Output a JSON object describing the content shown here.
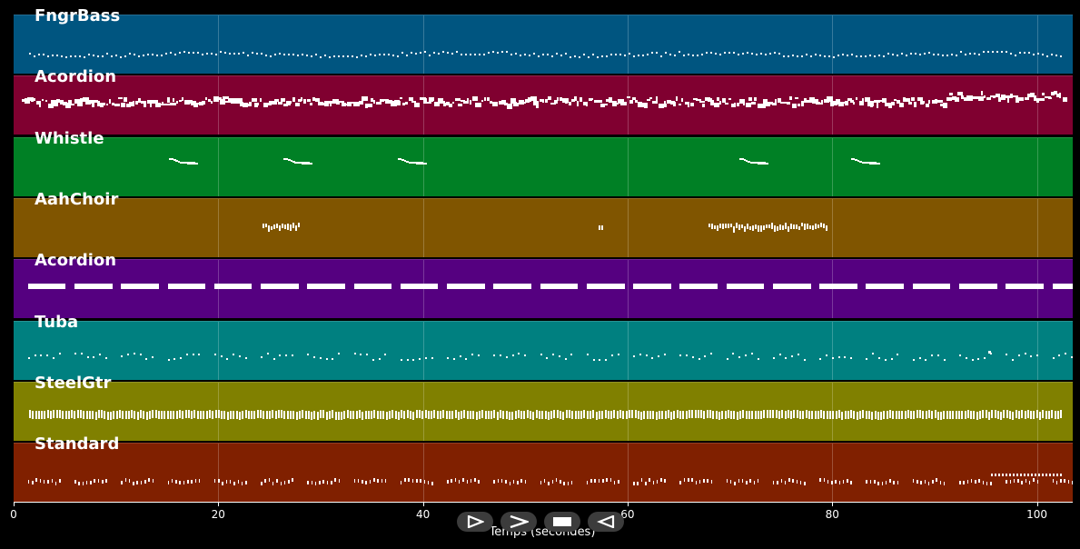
{
  "tracks": [
    {
      "name": "FngrBass",
      "color": "#005580",
      "pattern": "bass"
    },
    {
      "name": "Acordion",
      "color": "#800030",
      "pattern": "dense"
    },
    {
      "name": "Whistle",
      "color": "#008025",
      "pattern": "whistle"
    },
    {
      "name": "AahChoir",
      "color": "#805500",
      "pattern": "choir"
    },
    {
      "name": "Acordion",
      "color": "#550080",
      "pattern": "blocks"
    },
    {
      "name": "Tuba",
      "color": "#008080",
      "pattern": "sparse"
    },
    {
      "name": "SteelGtr",
      "color": "#808000",
      "pattern": "strum"
    },
    {
      "name": "Standard",
      "color": "#802000",
      "pattern": "drums"
    }
  ],
  "axis": {
    "xlabel": "Temps (secondes)",
    "xlim": [
      0,
      103.5
    ],
    "ticks": [
      "0",
      "20",
      "40",
      "60",
      "80",
      "100"
    ]
  },
  "controls": {
    "buttons": [
      {
        "name": "play-button",
        "icon": "play-outline-icon"
      },
      {
        "name": "forward-button",
        "icon": "chevron-right-icon"
      },
      {
        "name": "stop-button",
        "icon": "stop-icon"
      },
      {
        "name": "rewind-button",
        "icon": "play-reverse-icon"
      }
    ]
  }
}
